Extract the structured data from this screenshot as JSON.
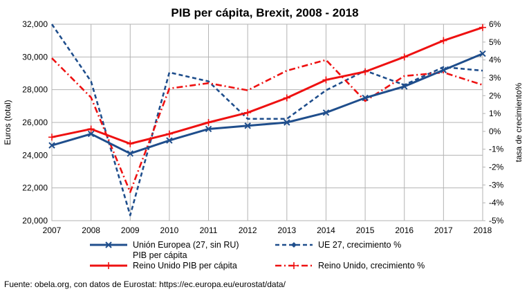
{
  "chart_data": {
    "type": "line",
    "title": "PIB per cápita, Brexit, 2008 - 2018",
    "ylabel": "Euros (total)",
    "y2label": "tasa de crecimiento%",
    "x": [
      "2007",
      "2008",
      "2009",
      "2010",
      "2011",
      "2012",
      "2013",
      "2014",
      "2015",
      "2016",
      "2017",
      "2018"
    ],
    "ylim": [
      20000,
      32000
    ],
    "y2lim": [
      -5,
      6
    ],
    "yticks": [
      "20,000",
      "22,000",
      "24,000",
      "26,000",
      "28,000",
      "30,000",
      "32,000"
    ],
    "y2ticks": [
      "-5%",
      "-4%",
      "-3%",
      "-2%",
      "-1%",
      "0%",
      "1%",
      "2%",
      "3%",
      "4%",
      "5%",
      "6%"
    ],
    "grid": true,
    "legend_position": "bottom",
    "series": [
      {
        "name": "Unión Europea (27, sin RU) PIB per cápita",
        "name_line1": "Unión Europea (27, sin RU)",
        "name_line2": "PIB per cápita",
        "axis": "left",
        "color": "#1f4e8c",
        "style": "solid",
        "marker": "x",
        "values": [
          24600,
          25300,
          24100,
          24900,
          25600,
          25800,
          26000,
          26600,
          27500,
          28200,
          29200,
          30200
        ]
      },
      {
        "name": "UE 27, crecimiento %",
        "axis": "right",
        "color": "#1f4e8c",
        "style": "dashed",
        "marker": "diamond",
        "values": [
          6.0,
          2.8,
          -4.7,
          3.3,
          2.8,
          0.7,
          0.7,
          2.3,
          3.4,
          2.6,
          3.6,
          3.4
        ]
      },
      {
        "name": "Reino Unido PIB per cápita",
        "axis": "left",
        "color": "#ee1111",
        "style": "solid",
        "marker": "plus",
        "values": [
          25100,
          25600,
          24700,
          25300,
          26000,
          26600,
          27500,
          28600,
          29100,
          30000,
          31000,
          31800
        ]
      },
      {
        "name": "Reino Unido, crecimiento %",
        "axis": "right",
        "color": "#ee1111",
        "style": "dashdot",
        "marker": "plus",
        "values": [
          4.1,
          1.9,
          -3.4,
          2.4,
          2.7,
          2.3,
          3.4,
          4.0,
          1.7,
          3.1,
          3.3,
          2.6
        ]
      }
    ]
  },
  "source": "Fuente: obela.org, con datos de Eurostat: https://ec.europa.eu/eurostat/data/"
}
